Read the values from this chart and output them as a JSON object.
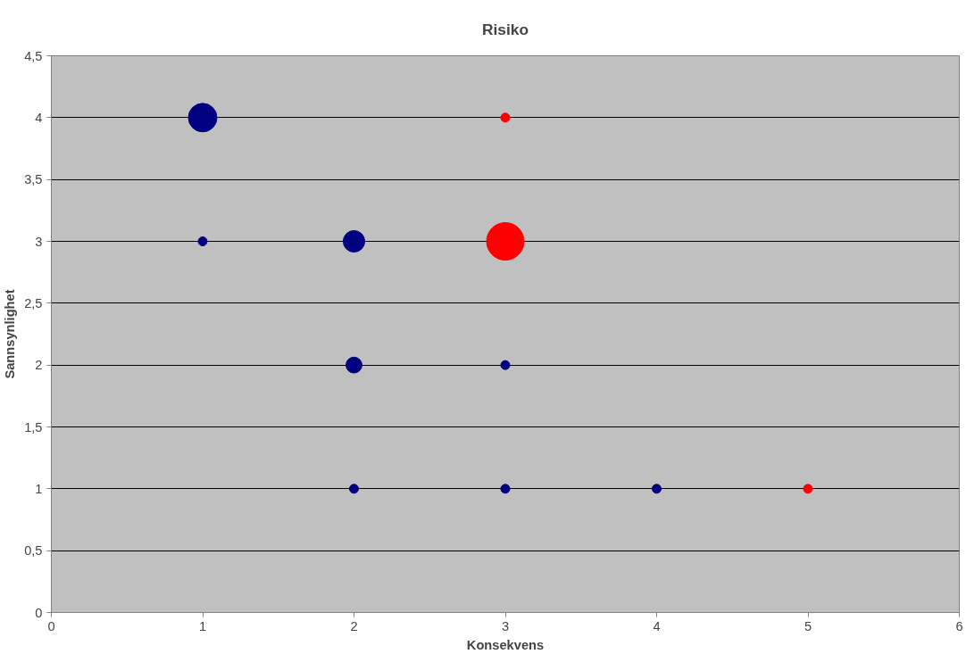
{
  "chart_data": {
    "type": "bubble",
    "title": "Risiko",
    "xlabel": "Konsekvens",
    "ylabel": "Sannsynlighet",
    "xlim": [
      0,
      6
    ],
    "xticks": [
      0,
      1,
      2,
      3,
      4,
      5,
      6
    ],
    "ylim": [
      0,
      4.5
    ],
    "yticks": [
      {
        "value": 0,
        "label": "0"
      },
      {
        "value": 0.5,
        "label": "0,5"
      },
      {
        "value": 1,
        "label": "1"
      },
      {
        "value": 1.5,
        "label": "1,5"
      },
      {
        "value": 2,
        "label": "2"
      },
      {
        "value": 2.5,
        "label": "2,5"
      },
      {
        "value": 3,
        "label": "3"
      },
      {
        "value": 3.5,
        "label": "3,5"
      },
      {
        "value": 4,
        "label": "4"
      },
      {
        "value": 4.5,
        "label": "4,5"
      }
    ],
    "grid": "y",
    "series": [
      {
        "color": "#000080",
        "x": [
          1,
          1,
          2,
          2,
          2,
          3,
          3,
          4
        ],
        "values": [
          4,
          3,
          3,
          2,
          1,
          2,
          1,
          1
        ],
        "sizes": [
          0.58,
          0.057,
          0.33,
          0.18,
          0.057,
          0.057,
          0.057,
          0.057
        ]
      },
      {
        "color": "#ff0000",
        "x": [
          3,
          3,
          5
        ],
        "values": [
          4,
          3,
          1
        ],
        "sizes": [
          0.057,
          1,
          0.057
        ]
      }
    ]
  }
}
